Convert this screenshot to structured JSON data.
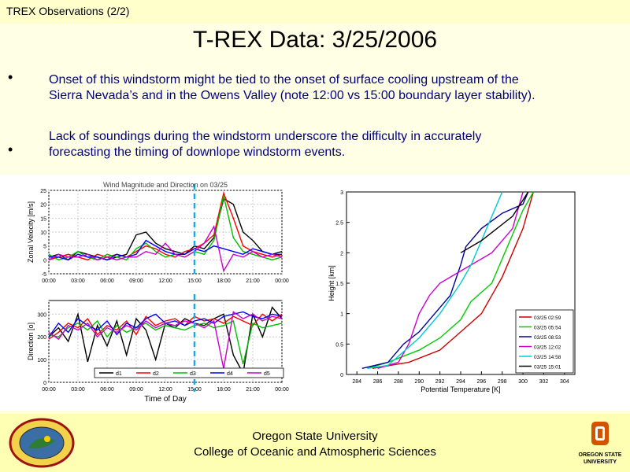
{
  "window": {
    "title": "TREX Observations (2/2)"
  },
  "slide": {
    "title": "T-REX Data:  3/25/2006",
    "bullets": [
      {
        "symbol": "•",
        "line1": "Onset of this windstorm might be tied to the onset of surface cooling upstream of the",
        "line2": "Sierra Nevada’s and in the Owens Valley (note 12:00 vs 15:00 boundary layer stability)."
      },
      {
        "symbol": "•",
        "line1": "Lack of soundings during the windstorm underscore the difficulty in accurately",
        "line2": "forecasting the timing of downlope windstorm events."
      }
    ]
  },
  "footer": {
    "line1": "Oregon State University",
    "line2": "College of Oceanic and Atmospheric Sciences",
    "logo_right_text1": "OREGON STATE",
    "logo_right_text2": "UNIVERSITY"
  },
  "chart_data": [
    {
      "type": "line",
      "title": "Wind Magnitude and Direction on 03/25",
      "ylabel": "Zonal Velocity [m/s]",
      "xlabel": "",
      "x_ticks": [
        "00:00",
        "03:00",
        "06:00",
        "09:00",
        "12:00",
        "15:00",
        "18:00",
        "21:00",
        "00:00"
      ],
      "y_ticks": [
        "-5",
        "0",
        "5",
        "10",
        "15",
        "20",
        "25"
      ],
      "ylim": [
        -5,
        25
      ],
      "xlim": [
        0,
        24
      ],
      "marker_time": 15,
      "series": [
        {
          "name": "d1",
          "color": "#000000",
          "x": [
            0,
            1,
            2,
            3,
            4,
            5,
            6,
            7,
            8,
            9,
            10,
            11,
            12,
            13,
            14,
            15,
            16,
            17,
            18,
            19,
            20,
            21,
            22,
            23,
            24
          ],
          "values": [
            1,
            2,
            0,
            3,
            2,
            1,
            0,
            1,
            2,
            9,
            10,
            6,
            4,
            3,
            2,
            5,
            4,
            8,
            22,
            20,
            10,
            7,
            3,
            2,
            3
          ]
        },
        {
          "name": "d2",
          "color": "#ff0000",
          "x": [
            0,
            1,
            2,
            3,
            4,
            5,
            6,
            7,
            8,
            9,
            10,
            11,
            12,
            13,
            14,
            15,
            16,
            17,
            18,
            19,
            20,
            21,
            22,
            23,
            24
          ],
          "values": [
            0,
            1,
            2,
            1,
            0,
            2,
            1,
            2,
            1,
            3,
            5,
            4,
            2,
            1,
            3,
            4,
            6,
            9,
            24,
            15,
            5,
            3,
            2,
            1,
            2
          ]
        },
        {
          "name": "d3",
          "color": "#00c000",
          "x": [
            0,
            1,
            2,
            3,
            4,
            5,
            6,
            7,
            8,
            9,
            10,
            11,
            12,
            13,
            14,
            15,
            16,
            17,
            18,
            19,
            20,
            21,
            22,
            23,
            24
          ],
          "values": [
            2,
            0,
            1,
            3,
            1,
            0,
            2,
            1,
            0,
            4,
            6,
            3,
            1,
            2,
            1,
            3,
            2,
            7,
            23,
            8,
            3,
            2,
            1,
            0,
            1
          ]
        },
        {
          "name": "d4",
          "color": "#0000ff",
          "x": [
            0,
            1,
            2,
            3,
            4,
            5,
            6,
            7,
            8,
            9,
            10,
            11,
            12,
            13,
            14,
            15,
            16,
            17,
            18,
            19,
            20,
            21,
            22,
            23,
            24
          ],
          "values": [
            1,
            1,
            0,
            2,
            1,
            1,
            0,
            2,
            1,
            2,
            7,
            5,
            3,
            2,
            2,
            4,
            3,
            5,
            4,
            3,
            2,
            4,
            3,
            2,
            2
          ]
        },
        {
          "name": "d5",
          "color": "#cc00cc",
          "x": [
            0,
            1,
            2,
            3,
            4,
            5,
            6,
            7,
            8,
            9,
            10,
            11,
            12,
            13,
            14,
            15,
            16,
            17,
            18,
            19,
            20,
            21,
            22,
            23,
            24
          ],
          "values": [
            0,
            2,
            1,
            1,
            2,
            0,
            1,
            0,
            1,
            1,
            3,
            2,
            6,
            2,
            1,
            3,
            6,
            12,
            -4,
            2,
            1,
            3,
            1,
            2,
            1
          ]
        }
      ]
    },
    {
      "type": "line",
      "title": "",
      "ylabel": "Direction [o]",
      "xlabel": "Time of Day",
      "x_ticks": [
        "00:00",
        "03:00",
        "06:00",
        "09:00",
        "12:00",
        "15:00",
        "18:00",
        "21:00",
        "00:00"
      ],
      "y_ticks": [
        "0",
        "100",
        "200",
        "300"
      ],
      "ylim": [
        0,
        360
      ],
      "xlim": [
        0,
        24
      ],
      "marker_time": 15,
      "legend": [
        "d1",
        "d2",
        "d3",
        "d4",
        "d5"
      ],
      "series": [
        {
          "name": "d1",
          "color": "#000000",
          "x": [
            0,
            1,
            2,
            3,
            4,
            5,
            6,
            7,
            8,
            9,
            10,
            11,
            12,
            13,
            14,
            15,
            16,
            17,
            18,
            19,
            20,
            21,
            22,
            23,
            24
          ],
          "values": [
            200,
            240,
            180,
            300,
            90,
            250,
            160,
            270,
            120,
            280,
            230,
            100,
            260,
            240,
            280,
            260,
            250,
            280,
            300,
            120,
            40,
            300,
            200,
            330,
            280
          ]
        },
        {
          "name": "d2",
          "color": "#ff0000",
          "x": [
            0,
            1,
            2,
            3,
            4,
            5,
            6,
            7,
            8,
            9,
            10,
            11,
            12,
            13,
            14,
            15,
            16,
            17,
            18,
            19,
            20,
            21,
            22,
            23,
            24
          ],
          "values": [
            190,
            220,
            260,
            240,
            280,
            210,
            250,
            230,
            270,
            210,
            290,
            250,
            270,
            280,
            250,
            290,
            270,
            280,
            260,
            290,
            270,
            250,
            300,
            270,
            300
          ]
        },
        {
          "name": "d3",
          "color": "#00c000",
          "x": [
            0,
            1,
            2,
            3,
            4,
            5,
            6,
            7,
            8,
            9,
            10,
            11,
            12,
            13,
            14,
            15,
            16,
            17,
            18,
            19,
            20,
            21,
            22,
            23,
            24
          ],
          "values": [
            210,
            200,
            240,
            260,
            230,
            270,
            200,
            250,
            220,
            240,
            260,
            230,
            250,
            240,
            230,
            250,
            260,
            240,
            250,
            270,
            80,
            260,
            240,
            250,
            260
          ]
        },
        {
          "name": "d4",
          "color": "#0000ff",
          "x": [
            0,
            1,
            2,
            3,
            4,
            5,
            6,
            7,
            8,
            9,
            10,
            11,
            12,
            13,
            14,
            15,
            16,
            17,
            18,
            19,
            20,
            21,
            22,
            23,
            24
          ],
          "values": [
            200,
            260,
            220,
            280,
            250,
            230,
            270,
            210,
            260,
            240,
            280,
            300,
            260,
            270,
            250,
            270,
            280,
            260,
            290,
            300,
            310,
            290,
            280,
            300,
            290
          ]
        },
        {
          "name": "d5",
          "color": "#cc00cc",
          "x": [
            0,
            1,
            2,
            3,
            4,
            5,
            6,
            7,
            8,
            9,
            10,
            11,
            12,
            13,
            14,
            15,
            16,
            17,
            18,
            19,
            20,
            21,
            22,
            23,
            24
          ],
          "values": [
            220,
            190,
            250,
            230,
            260,
            200,
            240,
            220,
            250,
            230,
            270,
            240,
            260,
            250,
            270,
            260,
            240,
            270,
            60,
            310,
            280,
            300,
            270,
            290,
            280
          ]
        }
      ]
    },
    {
      "type": "line",
      "title": "",
      "xlabel": "Potential Temperature [K]",
      "ylabel": "Height [km]",
      "x_ticks": [
        "284",
        "286",
        "288",
        "290",
        "292",
        "294",
        "296",
        "298",
        "300",
        "302",
        "304"
      ],
      "y_ticks": [
        "0",
        "0.5",
        "1",
        "1.5",
        "2",
        "2.5",
        "3"
      ],
      "xlim": [
        283,
        305
      ],
      "ylim": [
        0,
        3
      ],
      "legend_position": "bottom-right",
      "series": [
        {
          "name": "03/25 02:59",
          "color": "#cc0000",
          "temp": [
            285.5,
            289,
            292,
            294,
            296,
            297,
            298,
            299,
            300,
            300.5,
            301
          ],
          "height": [
            0.1,
            0.2,
            0.4,
            0.7,
            1.0,
            1.3,
            1.6,
            2.0,
            2.4,
            2.7,
            3.0
          ]
        },
        {
          "name": "03/25 05:54",
          "color": "#00cc00",
          "temp": [
            285,
            287,
            290,
            292,
            294,
            295,
            297,
            298,
            299,
            300,
            301
          ],
          "height": [
            0.1,
            0.2,
            0.4,
            0.6,
            0.9,
            1.2,
            1.5,
            1.9,
            2.3,
            2.7,
            3.0
          ]
        },
        {
          "name": "03/25 08:53",
          "color": "#000099",
          "temp": [
            284.5,
            287,
            288.5,
            290,
            291.5,
            293,
            294,
            294.5,
            296,
            298,
            300,
            300.5
          ],
          "height": [
            0.1,
            0.2,
            0.5,
            0.7,
            1.0,
            1.3,
            1.8,
            2.1,
            2.4,
            2.65,
            2.8,
            3.0
          ]
        },
        {
          "name": "03/25 12:02",
          "color": "#cc00cc",
          "temp": [
            286,
            288,
            289,
            290,
            291,
            292,
            294,
            297,
            299,
            300
          ],
          "height": [
            0.1,
            0.2,
            0.5,
            1.0,
            1.3,
            1.5,
            1.7,
            2.0,
            2.4,
            3.0
          ]
        },
        {
          "name": "03/25 14:58",
          "color": "#00cccc",
          "temp": [
            285,
            287,
            288,
            290,
            292,
            294,
            295,
            296,
            297,
            298
          ],
          "height": [
            0.1,
            0.15,
            0.3,
            0.6,
            1.0,
            1.5,
            1.8,
            2.2,
            2.6,
            3.0
          ]
        },
        {
          "name": "03/25 15:01",
          "color": "#000000",
          "temp": [
            294,
            296,
            297.5,
            299,
            300.5
          ],
          "height": [
            2.0,
            2.2,
            2.4,
            2.6,
            3.0
          ]
        }
      ]
    }
  ]
}
